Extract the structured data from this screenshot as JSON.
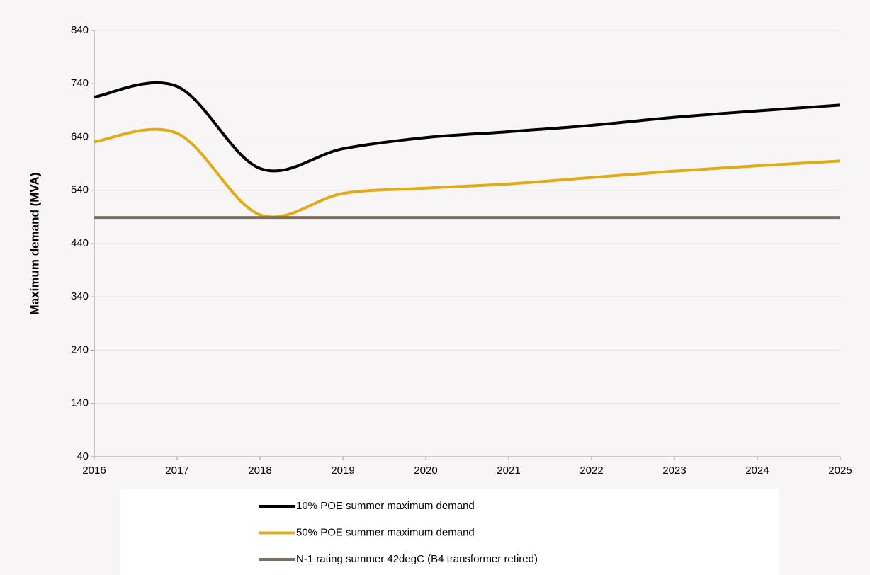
{
  "chart_data": {
    "type": "line",
    "y_label": "Maximum demand (MVA)",
    "x": [
      2016,
      2017,
      2018,
      2019,
      2020,
      2021,
      2022,
      2023,
      2024,
      2025
    ],
    "series": [
      {
        "name": "10% POE summer maximum demand",
        "color": "#000000",
        "values": [
          715,
          735,
          581,
          618,
          639,
          650,
          662,
          677,
          689,
          700
        ]
      },
      {
        "name": "50% POE summer maximum demand",
        "color": "#e2aa14",
        "values": [
          631,
          647,
          494,
          534,
          544,
          552,
          564,
          576,
          586,
          595
        ]
      },
      {
        "name": "N-1 rating summer 42degC (B4 transformer retired)",
        "color": "#7b705f",
        "values": [
          489,
          489,
          489,
          489,
          489,
          489,
          489,
          489,
          489,
          489
        ]
      }
    ],
    "xlim": [
      2016,
      2025
    ],
    "xticks": [
      2016,
      2017,
      2018,
      2019,
      2020,
      2021,
      2022,
      2023,
      2024,
      2025
    ],
    "ylim": [
      40,
      840
    ],
    "yticks": [
      40,
      140,
      240,
      340,
      440,
      540,
      640,
      740,
      840
    ],
    "grid": true
  }
}
